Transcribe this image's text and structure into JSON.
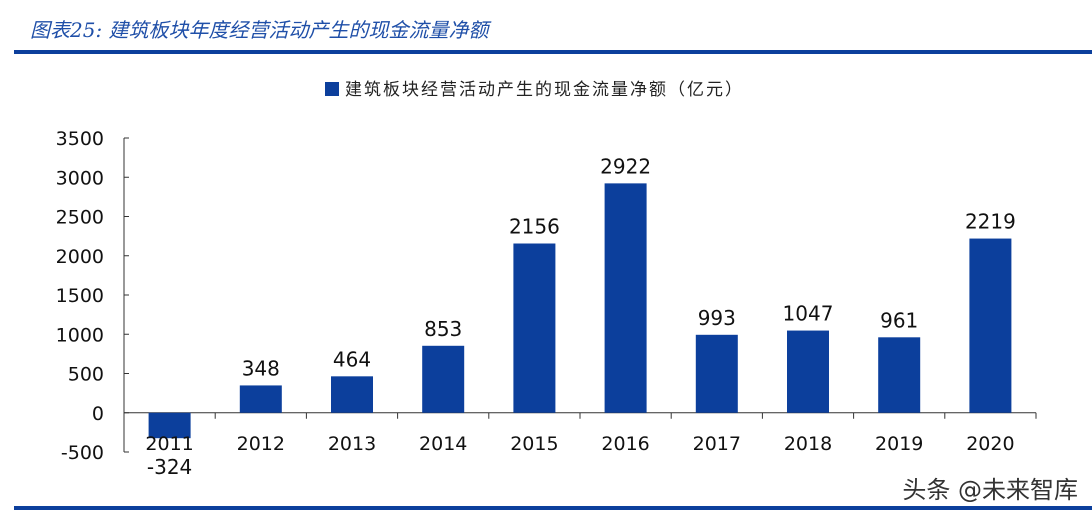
{
  "figure_title": "图表25:  建筑板块年度经营活动产生的现金流量净额",
  "watermark": "头条 @未来智库",
  "chart_data": {
    "type": "bar",
    "title": "",
    "legend": {
      "entries": [
        "建筑板块经营活动产生的现金流量净额（亿元）"
      ],
      "placement": "top"
    },
    "categories": [
      "2011",
      "2012",
      "2013",
      "2014",
      "2015",
      "2016",
      "2017",
      "2018",
      "2019",
      "2020"
    ],
    "series": [
      {
        "name": "建筑板块经营活动产生的现金流量净额（亿元）",
        "values": [
          -324,
          348,
          464,
          853,
          2156,
          2922,
          993,
          1047,
          961,
          2219
        ]
      }
    ],
    "ylim": [
      -500,
      3500
    ],
    "yticks": [
      -500,
      0,
      500,
      1000,
      1500,
      2000,
      2500,
      3000,
      3500
    ],
    "grid": false,
    "color": "#0c3f9c",
    "xlabel": "",
    "ylabel": ""
  }
}
